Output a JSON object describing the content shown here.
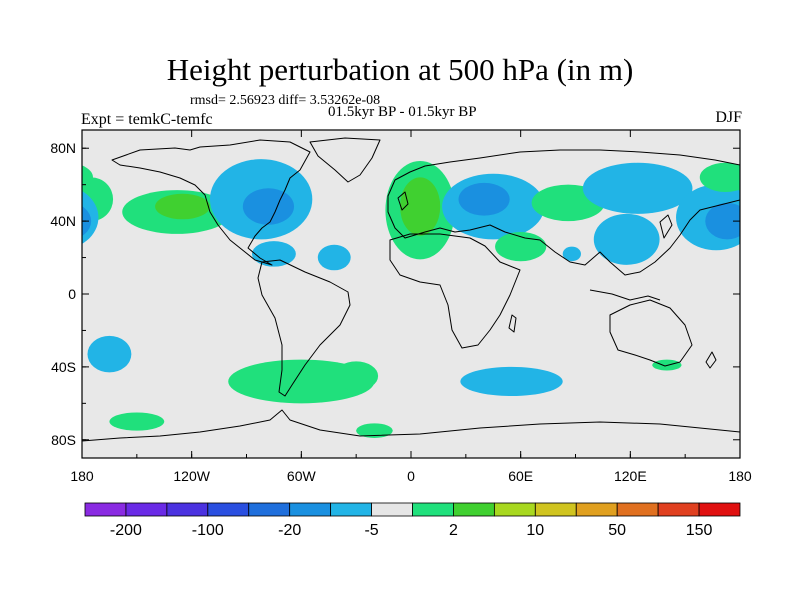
{
  "header": {
    "title": "Height perturbation at 500 hPa (in m)",
    "stats": "rmsd= 2.56923 diff= 3.53262e-08",
    "period": "01.5kyr BP - 01.5kyr BP",
    "experiment": "Expt = temkC-temfc",
    "season": "DJF"
  },
  "axes": {
    "lat_ticks": [
      {
        "value": 80,
        "label": "80N"
      },
      {
        "value": 40,
        "label": "40N"
      },
      {
        "value": 0,
        "label": "0"
      },
      {
        "value": -40,
        "label": "40S"
      },
      {
        "value": -80,
        "label": "80S"
      }
    ],
    "lon_ticks": [
      {
        "value": -180,
        "label": "180"
      },
      {
        "value": -120,
        "label": "120W"
      },
      {
        "value": -60,
        "label": "60W"
      },
      {
        "value": 0,
        "label": "0"
      },
      {
        "value": 60,
        "label": "60E"
      },
      {
        "value": 120,
        "label": "120E"
      },
      {
        "value": 180,
        "label": "180"
      }
    ],
    "lat_range": [
      -90,
      90
    ],
    "lon_range": [
      -180,
      180
    ]
  },
  "colorbar": {
    "colors": [
      "#8a2be2",
      "#6a2ae6",
      "#4b32e0",
      "#2a4fe0",
      "#1f6fdc",
      "#1a90e0",
      "#22b4e6",
      "#e6e6e6",
      "#20e07c",
      "#40d030",
      "#a8d820",
      "#d0c420",
      "#e0a020",
      "#e07020",
      "#e04020",
      "#e01010"
    ],
    "labels": [
      {
        "after_box": 1,
        "text": "-200"
      },
      {
        "after_box": 3,
        "text": "-100"
      },
      {
        "after_box": 5,
        "text": "-20"
      },
      {
        "after_box": 7,
        "text": "-5"
      },
      {
        "after_box": 9,
        "text": "2"
      },
      {
        "after_box": 11,
        "text": "10"
      },
      {
        "after_box": 13,
        "text": "50"
      },
      {
        "after_box": 15,
        "text": "150"
      }
    ]
  },
  "anomalies": [
    {
      "lon": -175,
      "lat": 52,
      "rx": 12,
      "ry": 12,
      "level": "pos-light"
    },
    {
      "lon": -128,
      "lat": 45,
      "rx": 30,
      "ry": 12,
      "level": "pos-light"
    },
    {
      "lon": -125,
      "lat": 48,
      "rx": 15,
      "ry": 7,
      "level": "pos-mid"
    },
    {
      "lon": -82,
      "lat": 52,
      "rx": 28,
      "ry": 22,
      "level": "neg-light"
    },
    {
      "lon": -78,
      "lat": 48,
      "rx": 14,
      "ry": 10,
      "level": "neg-mid"
    },
    {
      "lon": 5,
      "lat": 46,
      "rx": 19,
      "ry": 27,
      "level": "pos-light"
    },
    {
      "lon": 5,
      "lat": 48,
      "rx": 11,
      "ry": 16,
      "level": "pos-mid"
    },
    {
      "lon": 45,
      "lat": 48,
      "rx": 28,
      "ry": 18,
      "level": "neg-light"
    },
    {
      "lon": 40,
      "lat": 52,
      "rx": 14,
      "ry": 9,
      "level": "neg-mid"
    },
    {
      "lon": 60,
      "lat": 26,
      "rx": 14,
      "ry": 8,
      "level": "pos-light"
    },
    {
      "lon": 86,
      "lat": 50,
      "rx": 20,
      "ry": 10,
      "level": "pos-light"
    },
    {
      "lon": 124,
      "lat": 58,
      "rx": 30,
      "ry": 14,
      "level": "neg-light"
    },
    {
      "lon": 118,
      "lat": 30,
      "rx": 18,
      "ry": 14,
      "level": "neg-light"
    },
    {
      "lon": 167,
      "lat": 42,
      "rx": 22,
      "ry": 18,
      "level": "neg-light"
    },
    {
      "lon": 173,
      "lat": 40,
      "rx": 12,
      "ry": 10,
      "level": "neg-mid"
    },
    {
      "lon": 172,
      "lat": 64,
      "rx": 14,
      "ry": 8,
      "level": "pos-light"
    },
    {
      "lon": -75,
      "lat": 22,
      "rx": 12,
      "ry": 7,
      "level": "neg-light"
    },
    {
      "lon": -42,
      "lat": 20,
      "rx": 9,
      "ry": 7,
      "level": "neg-light"
    },
    {
      "lon": 88,
      "lat": 22,
      "rx": 5,
      "ry": 4,
      "level": "neg-light"
    },
    {
      "lon": -165,
      "lat": -33,
      "rx": 12,
      "ry": 10,
      "level": "neg-light"
    },
    {
      "lon": -82,
      "lat": -48,
      "rx": 8,
      "ry": 3,
      "level": "neg-light"
    },
    {
      "lon": -60,
      "lat": -48,
      "rx": 40,
      "ry": 12,
      "level": "pos-light"
    },
    {
      "lon": -30,
      "lat": -45,
      "rx": 12,
      "ry": 8,
      "level": "pos-light"
    },
    {
      "lon": 55,
      "lat": -48,
      "rx": 28,
      "ry": 8,
      "level": "neg-light"
    },
    {
      "lon": 140,
      "lat": -39,
      "rx": 8,
      "ry": 3,
      "level": "pos-light"
    },
    {
      "lon": -150,
      "lat": -70,
      "rx": 15,
      "ry": 5,
      "level": "pos-light"
    },
    {
      "lon": -20,
      "lat": -75,
      "rx": 10,
      "ry": 4,
      "level": "pos-light"
    }
  ]
}
